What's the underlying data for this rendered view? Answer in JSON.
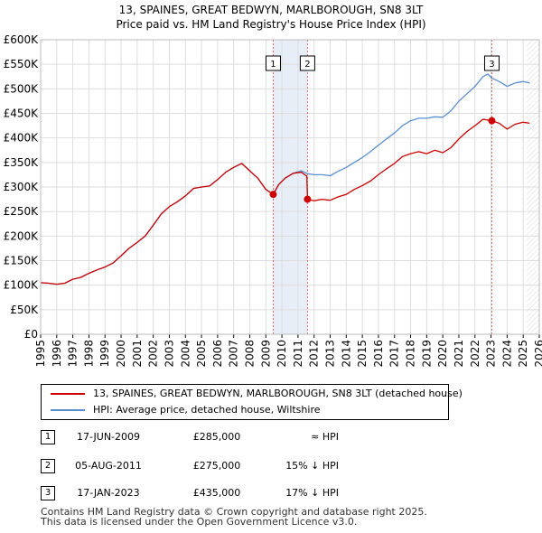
{
  "header": {
    "title": "13, SPAINES, GREAT BEDWYN, MARLBOROUGH, SN8 3LT",
    "subtitle": "Price paid vs. HM Land Registry's House Price Index (HPI)"
  },
  "chart_data": {
    "type": "line",
    "title": "13, SPAINES, GREAT BEDWYN, MARLBOROUGH, SN8 3LT",
    "subtitle": "Price paid vs. HM Land Registry's House Price Index (HPI)",
    "xlim": [
      1995,
      2026
    ],
    "ylim": [
      0,
      600000
    ],
    "x_ticks": [
      "1995",
      "1996",
      "1997",
      "1998",
      "1999",
      "2000",
      "2001",
      "2002",
      "2003",
      "2004",
      "2005",
      "2006",
      "2007",
      "2008",
      "2009",
      "2010",
      "2011",
      "2012",
      "2013",
      "2014",
      "2015",
      "2016",
      "2017",
      "2018",
      "2019",
      "2020",
      "2021",
      "2022",
      "2023",
      "2024",
      "2025",
      "2026"
    ],
    "y_ticks": [
      {
        "value": 0,
        "label": "£0"
      },
      {
        "value": 50000,
        "label": "£50K"
      },
      {
        "value": 100000,
        "label": "£100K"
      },
      {
        "value": 150000,
        "label": "£150K"
      },
      {
        "value": 200000,
        "label": "£200K"
      },
      {
        "value": 250000,
        "label": "£250K"
      },
      {
        "value": 300000,
        "label": "£300K"
      },
      {
        "value": 350000,
        "label": "£350K"
      },
      {
        "value": 400000,
        "label": "£400K"
      },
      {
        "value": 450000,
        "label": "£450K"
      },
      {
        "value": 500000,
        "label": "£500K"
      },
      {
        "value": 550000,
        "label": "£550K"
      },
      {
        "value": 600000,
        "label": "£600K"
      }
    ],
    "grid": true,
    "future_shading_from": 2025.2,
    "shaded_spans": [
      [
        2009.46,
        2011.59
      ]
    ],
    "series": [
      {
        "name": "13, SPAINES, GREAT BEDWYN, MARLBOROUGH, SN8 3LT (detached house)",
        "color": "#cc0000",
        "points": [
          [
            1995.0,
            105000
          ],
          [
            1995.5,
            104000
          ],
          [
            1996.0,
            102000
          ],
          [
            1996.5,
            104000
          ],
          [
            1997.0,
            112000
          ],
          [
            1997.5,
            116000
          ],
          [
            1998.0,
            124000
          ],
          [
            1998.5,
            131000
          ],
          [
            1999.0,
            137000
          ],
          [
            1999.5,
            145000
          ],
          [
            2000.0,
            160000
          ],
          [
            2000.5,
            175000
          ],
          [
            2001.0,
            187000
          ],
          [
            2001.5,
            200000
          ],
          [
            2002.0,
            222000
          ],
          [
            2002.5,
            245000
          ],
          [
            2003.0,
            260000
          ],
          [
            2003.5,
            270000
          ],
          [
            2004.0,
            282000
          ],
          [
            2004.5,
            297000
          ],
          [
            2005.0,
            300000
          ],
          [
            2005.5,
            302000
          ],
          [
            2006.0,
            315000
          ],
          [
            2006.5,
            330000
          ],
          [
            2007.0,
            340000
          ],
          [
            2007.5,
            348000
          ],
          [
            2008.0,
            333000
          ],
          [
            2008.5,
            318000
          ],
          [
            2009.0,
            295000
          ],
          [
            2009.46,
            285000
          ],
          [
            2009.8,
            305000
          ],
          [
            2010.2,
            318000
          ],
          [
            2010.7,
            328000
          ],
          [
            2011.2,
            330000
          ],
          [
            2011.55,
            322000
          ],
          [
            2011.59,
            275000
          ],
          [
            2012.0,
            272000
          ],
          [
            2012.5,
            275000
          ],
          [
            2013.0,
            273000
          ],
          [
            2013.5,
            280000
          ],
          [
            2014.0,
            285000
          ],
          [
            2014.5,
            295000
          ],
          [
            2015.0,
            303000
          ],
          [
            2015.5,
            312000
          ],
          [
            2016.0,
            325000
          ],
          [
            2016.5,
            337000
          ],
          [
            2017.0,
            348000
          ],
          [
            2017.5,
            362000
          ],
          [
            2018.0,
            368000
          ],
          [
            2018.5,
            372000
          ],
          [
            2019.0,
            368000
          ],
          [
            2019.5,
            375000
          ],
          [
            2020.0,
            370000
          ],
          [
            2020.5,
            380000
          ],
          [
            2021.0,
            398000
          ],
          [
            2021.5,
            413000
          ],
          [
            2022.0,
            425000
          ],
          [
            2022.5,
            438000
          ],
          [
            2023.05,
            435000
          ],
          [
            2023.5,
            430000
          ],
          [
            2024.0,
            418000
          ],
          [
            2024.5,
            428000
          ],
          [
            2025.0,
            432000
          ],
          [
            2025.4,
            430000
          ]
        ]
      },
      {
        "name": "HPI: Average price, detached house, Wiltshire",
        "color": "#5b8fd0",
        "points": [
          [
            1995.0,
            105000
          ],
          [
            1995.5,
            104000
          ],
          [
            1996.0,
            102000
          ],
          [
            1996.5,
            104000
          ],
          [
            1997.0,
            112000
          ],
          [
            1997.5,
            116000
          ],
          [
            1998.0,
            124000
          ],
          [
            1998.5,
            131000
          ],
          [
            1999.0,
            137000
          ],
          [
            1999.5,
            145000
          ],
          [
            2000.0,
            160000
          ],
          [
            2000.5,
            175000
          ],
          [
            2001.0,
            187000
          ],
          [
            2001.5,
            200000
          ],
          [
            2002.0,
            222000
          ],
          [
            2002.5,
            245000
          ],
          [
            2003.0,
            260000
          ],
          [
            2003.5,
            270000
          ],
          [
            2004.0,
            282000
          ],
          [
            2004.5,
            297000
          ],
          [
            2005.0,
            300000
          ],
          [
            2005.5,
            302000
          ],
          [
            2006.0,
            315000
          ],
          [
            2006.5,
            330000
          ],
          [
            2007.0,
            340000
          ],
          [
            2007.5,
            348000
          ],
          [
            2008.0,
            333000
          ],
          [
            2008.5,
            318000
          ],
          [
            2009.0,
            295000
          ],
          [
            2009.46,
            285000
          ],
          [
            2009.8,
            305000
          ],
          [
            2010.2,
            318000
          ],
          [
            2010.7,
            328000
          ],
          [
            2011.2,
            333000
          ],
          [
            2011.6,
            327000
          ],
          [
            2012.0,
            325000
          ],
          [
            2012.5,
            325000
          ],
          [
            2013.0,
            323000
          ],
          [
            2013.5,
            332000
          ],
          [
            2014.0,
            340000
          ],
          [
            2014.5,
            350000
          ],
          [
            2015.0,
            360000
          ],
          [
            2015.5,
            372000
          ],
          [
            2016.0,
            385000
          ],
          [
            2016.5,
            398000
          ],
          [
            2017.0,
            410000
          ],
          [
            2017.5,
            425000
          ],
          [
            2018.0,
            435000
          ],
          [
            2018.5,
            440000
          ],
          [
            2019.0,
            440000
          ],
          [
            2019.5,
            443000
          ],
          [
            2020.0,
            442000
          ],
          [
            2020.5,
            455000
          ],
          [
            2021.0,
            475000
          ],
          [
            2021.5,
            490000
          ],
          [
            2022.0,
            505000
          ],
          [
            2022.5,
            525000
          ],
          [
            2022.8,
            530000
          ],
          [
            2023.05,
            522000
          ],
          [
            2023.5,
            515000
          ],
          [
            2024.0,
            505000
          ],
          [
            2024.5,
            512000
          ],
          [
            2025.0,
            515000
          ],
          [
            2025.4,
            512000
          ]
        ]
      }
    ],
    "markers": [
      {
        "label": "1",
        "x": 2009.46,
        "y": 285000
      },
      {
        "label": "2",
        "x": 2011.59,
        "y": 275000
      },
      {
        "label": "3",
        "x": 2023.05,
        "y": 435000
      }
    ]
  },
  "legend": {
    "items": [
      {
        "label": "13, SPAINES, GREAT BEDWYN, MARLBOROUGH, SN8 3LT (detached house)",
        "color": "#cc0000"
      },
      {
        "label": "HPI: Average price, detached house, Wiltshire",
        "color": "#5b8fd0"
      }
    ]
  },
  "transactions": [
    {
      "num": "1",
      "date": "17-JUN-2009",
      "price": "£285,000",
      "hpi": "≈ HPI"
    },
    {
      "num": "2",
      "date": "05-AUG-2011",
      "price": "£275,000",
      "hpi": "15% ↓ HPI"
    },
    {
      "num": "3",
      "date": "17-JAN-2023",
      "price": "£435,000",
      "hpi": "17% ↓ HPI"
    }
  ],
  "footer": {
    "line1": "Contains HM Land Registry data © Crown copyright and database right 2025.",
    "line2": "This data is licensed under the Open Government Licence v3.0."
  }
}
